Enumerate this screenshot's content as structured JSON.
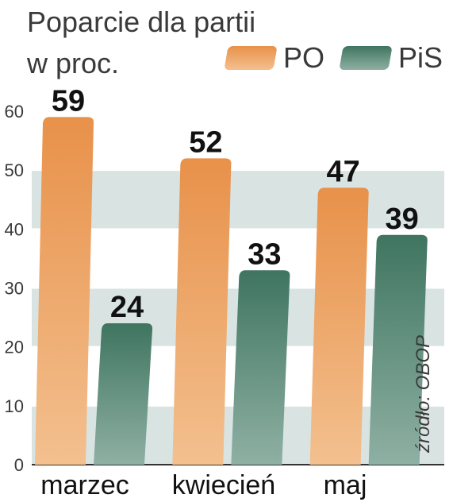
{
  "chart_data": {
    "type": "bar",
    "title": "Poparcie dla partii w proc.",
    "title_lines": [
      "Poparcie dla partii",
      "w proc."
    ],
    "categories": [
      "marzec",
      "kwiecień",
      "maj"
    ],
    "series": [
      {
        "name": "PO",
        "values": [
          59,
          52,
          47
        ],
        "color_top": "#e8914a",
        "color_bottom": "#f3c08f"
      },
      {
        "name": "PiS",
        "values": [
          24,
          33,
          39
        ],
        "color_top": "#3f7560",
        "color_bottom": "#8fb0a4"
      }
    ],
    "ylim": [
      0,
      60
    ],
    "yticks": [
      "0",
      "10",
      "20",
      "30",
      "40",
      "50",
      "60"
    ],
    "grid": true,
    "legend_position": "top-right",
    "source": "źródło: OBOP",
    "band_colors": [
      "#ffffff",
      "#d9e4e2"
    ]
  }
}
